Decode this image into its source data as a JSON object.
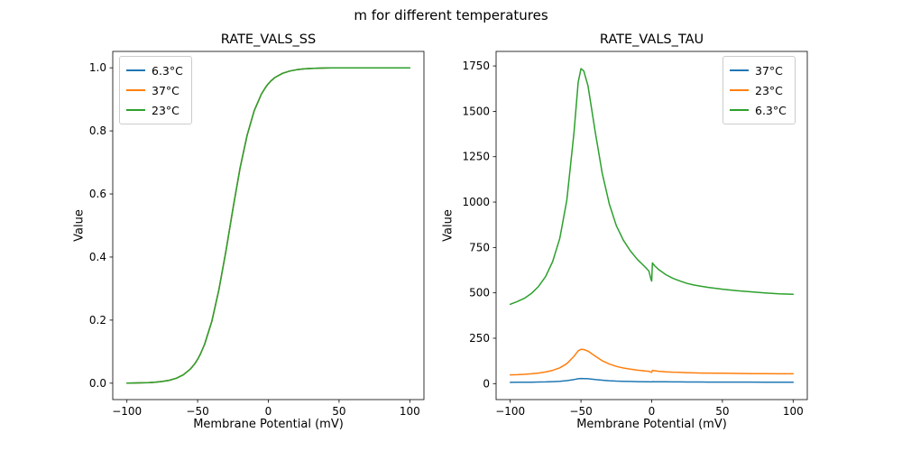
{
  "figure": {
    "title": "m for different temperatures"
  },
  "chart_data": {
    "type": "line",
    "subplots": [
      {
        "title": "RATE_VALS_SS",
        "xlabel": "Membrane Potential (mV)",
        "ylabel": "Value",
        "legend_loc": "upper left",
        "xlim": [
          -110,
          110
        ],
        "ylim": [
          -0.052,
          1.052
        ],
        "xticks": [
          -100,
          -50,
          0,
          50,
          100
        ],
        "xtick_labels": [
          "−100",
          "−50",
          "0",
          "50",
          "100"
        ],
        "yticks": [
          0.0,
          0.2,
          0.4,
          0.6,
          0.8,
          1.0
        ],
        "ytick_labels": [
          "0.0",
          "0.2",
          "0.4",
          "0.6",
          "0.8",
          "1.0"
        ],
        "x": [
          -100,
          -95,
          -90,
          -85,
          -80,
          -75,
          -70,
          -65,
          -60,
          -55,
          -52,
          -50,
          -48,
          -45,
          -40,
          -35,
          -30,
          -25,
          -20,
          -15,
          -10,
          -5,
          -2,
          -0.5,
          0,
          0.5,
          2,
          5,
          10,
          15,
          20,
          25,
          30,
          35,
          40,
          45,
          50,
          60,
          70,
          80,
          90,
          100
        ],
        "series": [
          {
            "name": "6.3°C",
            "color": "#1f77b4",
            "values": [
              0.0004,
              0.0006,
              0.0011,
              0.0018,
              0.0031,
              0.0054,
              0.0092,
              0.0158,
              0.0268,
              0.0454,
              0.0618,
              0.0757,
              0.0925,
              0.1238,
              0.1957,
              0.2953,
              0.4192,
              0.5541,
              0.6816,
              0.7865,
              0.8638,
              0.9161,
              0.938,
              0.9469,
              0.9495,
              0.952,
              0.959,
              0.9701,
              0.9824,
              0.9897,
              0.994,
              0.9965,
              0.998,
              0.9988,
              0.9993,
              0.9996,
              0.9998,
              0.9999,
              1.0,
              1.0,
              1.0,
              1.0
            ]
          },
          {
            "name": "37°C",
            "color": "#ff7f0e",
            "values": [
              0.0004,
              0.0006,
              0.0011,
              0.0018,
              0.0031,
              0.0054,
              0.0092,
              0.0158,
              0.0268,
              0.0454,
              0.0618,
              0.0757,
              0.0925,
              0.1238,
              0.1957,
              0.2953,
              0.4192,
              0.5541,
              0.6816,
              0.7865,
              0.8638,
              0.9161,
              0.938,
              0.9469,
              0.9495,
              0.952,
              0.959,
              0.9701,
              0.9824,
              0.9897,
              0.994,
              0.9965,
              0.998,
              0.9988,
              0.9993,
              0.9996,
              0.9998,
              0.9999,
              1.0,
              1.0,
              1.0,
              1.0
            ]
          },
          {
            "name": "23°C",
            "color": "#2ca02c",
            "values": [
              0.0004,
              0.0006,
              0.0011,
              0.0018,
              0.0031,
              0.0054,
              0.0092,
              0.0158,
              0.0268,
              0.0454,
              0.0618,
              0.0757,
              0.0925,
              0.1238,
              0.1957,
              0.2953,
              0.4192,
              0.5541,
              0.6816,
              0.7865,
              0.8638,
              0.9161,
              0.938,
              0.9469,
              0.9495,
              0.952,
              0.959,
              0.9701,
              0.9824,
              0.9897,
              0.994,
              0.9965,
              0.998,
              0.9988,
              0.9993,
              0.9996,
              0.9998,
              0.9999,
              1.0,
              1.0,
              1.0,
              1.0
            ]
          }
        ]
      },
      {
        "title": "RATE_VALS_TAU",
        "xlabel": "Membrane Potential (mV)",
        "ylabel": "Value",
        "legend_loc": "upper right",
        "xlim": [
          -110,
          110
        ],
        "ylim": [
          -88,
          1830
        ],
        "xticks": [
          -100,
          -50,
          0,
          50,
          100
        ],
        "xtick_labels": [
          "−100",
          "−50",
          "0",
          "50",
          "100"
        ],
        "yticks": [
          0,
          250,
          500,
          750,
          1000,
          1250,
          1500,
          1750
        ],
        "ytick_labels": [
          "0",
          "250",
          "500",
          "750",
          "1000",
          "1250",
          "1500",
          "1750"
        ],
        "x": [
          -100,
          -95,
          -90,
          -85,
          -80,
          -75,
          -70,
          -65,
          -60,
          -55,
          -52,
          -50,
          -48,
          -45,
          -40,
          -35,
          -30,
          -25,
          -20,
          -15,
          -10,
          -5,
          -2,
          -0.5,
          0,
          0.5,
          2,
          5,
          10,
          15,
          20,
          25,
          30,
          35,
          40,
          45,
          50,
          60,
          70,
          80,
          90,
          100
        ],
        "series": [
          {
            "name": "37°C",
            "color": "#1f77b4",
            "values": [
              7.1,
              7.3,
              7.6,
              8.1,
              8.7,
              9.6,
              10.9,
              13.0,
              16.4,
              22.4,
              26.9,
              28.1,
              27.9,
              26.6,
              22.5,
              18.8,
              16.0,
              14.1,
              12.8,
              11.8,
              11.1,
              10.4,
              10.0,
              9.3,
              9.2,
              10.8,
              10.5,
              10.2,
              9.7,
              9.4,
              9.2,
              8.9,
              8.8,
              8.7,
              8.6,
              8.5,
              8.4,
              8.3,
              8.2,
              8.1,
              8.0,
              8.0
            ]
          },
          {
            "name": "23°C",
            "color": "#ff7f0e",
            "values": [
              48,
              49,
              51,
              54,
              58,
              64,
              73,
              87,
              110,
              150,
              181,
              189,
              188,
              179,
              152,
              126,
              108,
              95,
              86,
              80,
              74,
              70,
              68,
              63,
              62,
              73,
              71,
              68,
              65,
              63,
              62,
              60,
              59,
              58,
              58,
              57,
              57,
              56,
              55,
              55,
              54,
              54
            ]
          },
          {
            "name": "6.3°C",
            "color": "#2ca02c",
            "values": [
              437,
              452,
              470,
              497,
              535,
              590,
              672,
              800,
              1010,
              1380,
              1660,
              1735,
              1722,
              1640,
              1390,
              1160,
              990,
              870,
              790,
              730,
              683,
              645,
              620,
              575,
              565,
              665,
              650,
              628,
              600,
              580,
              565,
              552,
              543,
              536,
              530,
              525,
              520,
              512,
              506,
              500,
              495,
              492
            ]
          }
        ]
      }
    ]
  }
}
